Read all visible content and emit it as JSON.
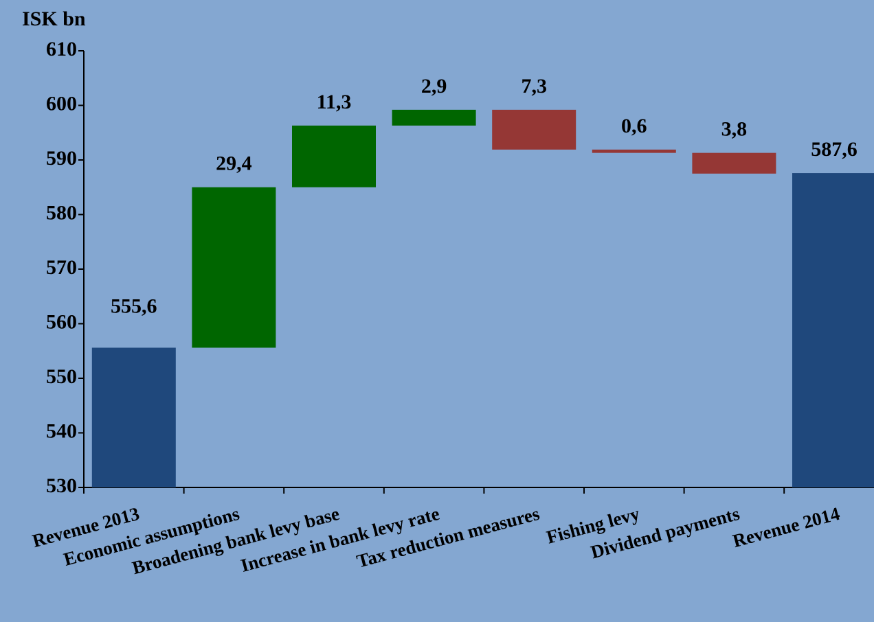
{
  "chart_data": {
    "type": "waterfall",
    "y_label": "ISK bn",
    "categories": [
      "Revenue 2013",
      "Economic assumptions",
      "Broadening bank levy base",
      "Increase in bank levy rate",
      "Tax reduction measures",
      "Fishing levy",
      "Dividend payments",
      "Revenue 2014"
    ],
    "measures": [
      "absolute",
      "relative",
      "relative",
      "relative",
      "relative",
      "relative",
      "relative",
      "absolute"
    ],
    "values": [
      555.6,
      29.4,
      11.3,
      2.9,
      -7.3,
      -0.6,
      -3.8,
      587.6
    ],
    "value_labels": [
      "555,6",
      "29,4",
      "11,3",
      "2,9",
      "7,3",
      "0,6",
      "3,8",
      "587,6"
    ],
    "colors": {
      "total": "#1f487c",
      "increase": "#006600",
      "decrease": "#953735"
    },
    "ylim": [
      530,
      610
    ],
    "yticks": [
      530,
      540,
      550,
      560,
      570,
      580,
      590,
      600,
      610
    ],
    "grid": false
  }
}
